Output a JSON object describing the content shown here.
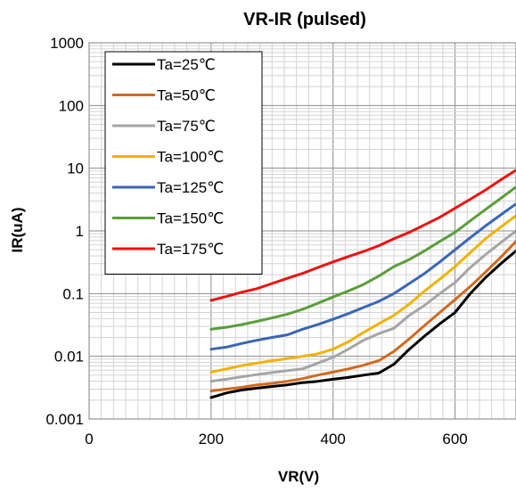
{
  "chart_data": {
    "type": "line",
    "title": "VR-IR (pulsed)",
    "xlabel": "VR(V)",
    "ylabel": "IR(uA)",
    "xlim": [
      0,
      700
    ],
    "ylim": [
      0.001,
      1000
    ],
    "yscale": "log",
    "grid": true,
    "legend_position": "top-left",
    "x_ticks": [
      0,
      200,
      400,
      600
    ],
    "x_tick_labels": [
      "0",
      "200",
      "400",
      "600"
    ],
    "y_ticks": [
      0.001,
      0.01,
      0.1,
      1,
      10,
      100,
      1000
    ],
    "y_tick_labels": [
      "0.001",
      "0.01",
      "0.1",
      "1",
      "10",
      "100",
      "1000"
    ],
    "series": [
      {
        "name": "Ta=25℃",
        "color": "#000000",
        "x": [
          200,
          225,
          250,
          275,
          300,
          325,
          350,
          375,
          400,
          425,
          450,
          475,
          500,
          525,
          550,
          575,
          600,
          625,
          650,
          675,
          700
        ],
        "y": [
          0.0022,
          0.0026,
          0.0029,
          0.0031,
          0.0033,
          0.0035,
          0.0038,
          0.004,
          0.0043,
          0.0046,
          0.005,
          0.0054,
          0.0075,
          0.013,
          0.021,
          0.033,
          0.05,
          0.1,
          0.18,
          0.3,
          0.48
        ]
      },
      {
        "name": "Ta=50℃",
        "color": "#d2691e",
        "x": [
          200,
          225,
          250,
          275,
          300,
          325,
          350,
          375,
          400,
          425,
          450,
          475,
          500,
          525,
          550,
          575,
          600,
          625,
          650,
          675,
          700
        ],
        "y": [
          0.0028,
          0.003,
          0.0032,
          0.0035,
          0.0037,
          0.004,
          0.0044,
          0.005,
          0.0056,
          0.0063,
          0.0072,
          0.0085,
          0.012,
          0.019,
          0.031,
          0.05,
          0.08,
          0.13,
          0.22,
          0.38,
          0.68
        ]
      },
      {
        "name": "Ta=75℃",
        "color": "#a5a5a5",
        "x": [
          200,
          225,
          250,
          275,
          300,
          325,
          350,
          375,
          400,
          425,
          450,
          475,
          500,
          525,
          550,
          575,
          600,
          625,
          650,
          675,
          700
        ],
        "y": [
          0.004,
          0.0043,
          0.0047,
          0.0051,
          0.0055,
          0.0059,
          0.0063,
          0.0078,
          0.0096,
          0.013,
          0.018,
          0.023,
          0.028,
          0.045,
          0.065,
          0.1,
          0.15,
          0.26,
          0.42,
          0.65,
          1.0
        ]
      },
      {
        "name": "Ta=100℃",
        "color": "#f2b200",
        "x": [
          200,
          225,
          250,
          275,
          300,
          325,
          350,
          375,
          400,
          425,
          450,
          475,
          500,
          525,
          550,
          575,
          600,
          625,
          650,
          675,
          700
        ],
        "y": [
          0.0056,
          0.0063,
          0.0071,
          0.0078,
          0.0085,
          0.0092,
          0.01,
          0.011,
          0.013,
          0.017,
          0.024,
          0.033,
          0.045,
          0.068,
          0.11,
          0.17,
          0.27,
          0.45,
          0.75,
          1.15,
          1.75
        ]
      },
      {
        "name": "Ta=125℃",
        "color": "#3a66b5",
        "x": [
          200,
          225,
          250,
          275,
          300,
          325,
          350,
          375,
          400,
          425,
          450,
          475,
          500,
          525,
          550,
          575,
          600,
          625,
          650,
          675,
          700
        ],
        "y": [
          0.013,
          0.014,
          0.016,
          0.018,
          0.02,
          0.022,
          0.027,
          0.032,
          0.039,
          0.048,
          0.06,
          0.075,
          0.1,
          0.145,
          0.21,
          0.32,
          0.5,
          0.78,
          1.2,
          1.8,
          2.7
        ]
      },
      {
        "name": "Ta=150℃",
        "color": "#5a9e3a",
        "x": [
          200,
          225,
          250,
          275,
          300,
          325,
          350,
          375,
          400,
          425,
          450,
          475,
          500,
          525,
          550,
          575,
          600,
          625,
          650,
          675,
          700
        ],
        "y": [
          0.027,
          0.029,
          0.032,
          0.036,
          0.041,
          0.047,
          0.056,
          0.07,
          0.088,
          0.11,
          0.14,
          0.19,
          0.27,
          0.35,
          0.48,
          0.68,
          0.95,
          1.45,
          2.2,
          3.3,
          5.0
        ]
      },
      {
        "name": "Ta=175℃",
        "color": "#ee1111",
        "x": [
          200,
          225,
          250,
          275,
          300,
          325,
          350,
          375,
          400,
          425,
          450,
          475,
          500,
          525,
          550,
          575,
          600,
          625,
          650,
          675,
          700
        ],
        "y": [
          0.078,
          0.09,
          0.105,
          0.12,
          0.145,
          0.175,
          0.21,
          0.26,
          0.32,
          0.39,
          0.47,
          0.58,
          0.75,
          0.95,
          1.25,
          1.65,
          2.3,
          3.2,
          4.5,
          6.5,
          9.3
        ]
      }
    ]
  }
}
